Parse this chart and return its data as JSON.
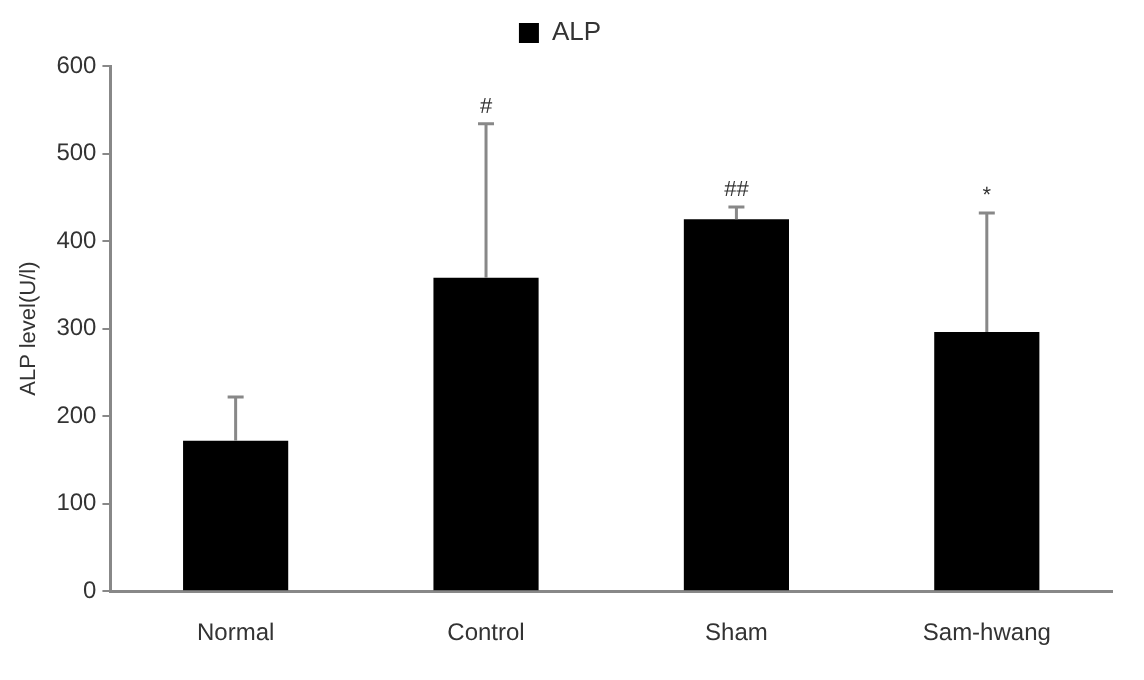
{
  "chart_data": {
    "type": "bar",
    "ylabel": "ALP level(U/l)",
    "categories": [
      "Normal",
      "Control",
      "Sham",
      "Sam-hwang"
    ],
    "series": [
      {
        "name": "ALP",
        "color": "#000000",
        "values": [
          172,
          358,
          425,
          296
        ],
        "errors": [
          [
            172,
            222
          ],
          [
            358,
            534
          ],
          [
            425,
            439
          ],
          [
            296,
            432
          ]
        ]
      }
    ],
    "ylim": [
      0,
      600
    ],
    "yticks": [
      0,
      100,
      200,
      300,
      400,
      500,
      600
    ],
    "grid": false,
    "legend": "top",
    "annotations": [
      {
        "text": "#",
        "x": "Control",
        "y": 534
      },
      {
        "text": "##",
        "x": "Sham",
        "y": 439
      },
      {
        "text": "*",
        "x": "Sam-hwang",
        "y": 432
      }
    ]
  }
}
